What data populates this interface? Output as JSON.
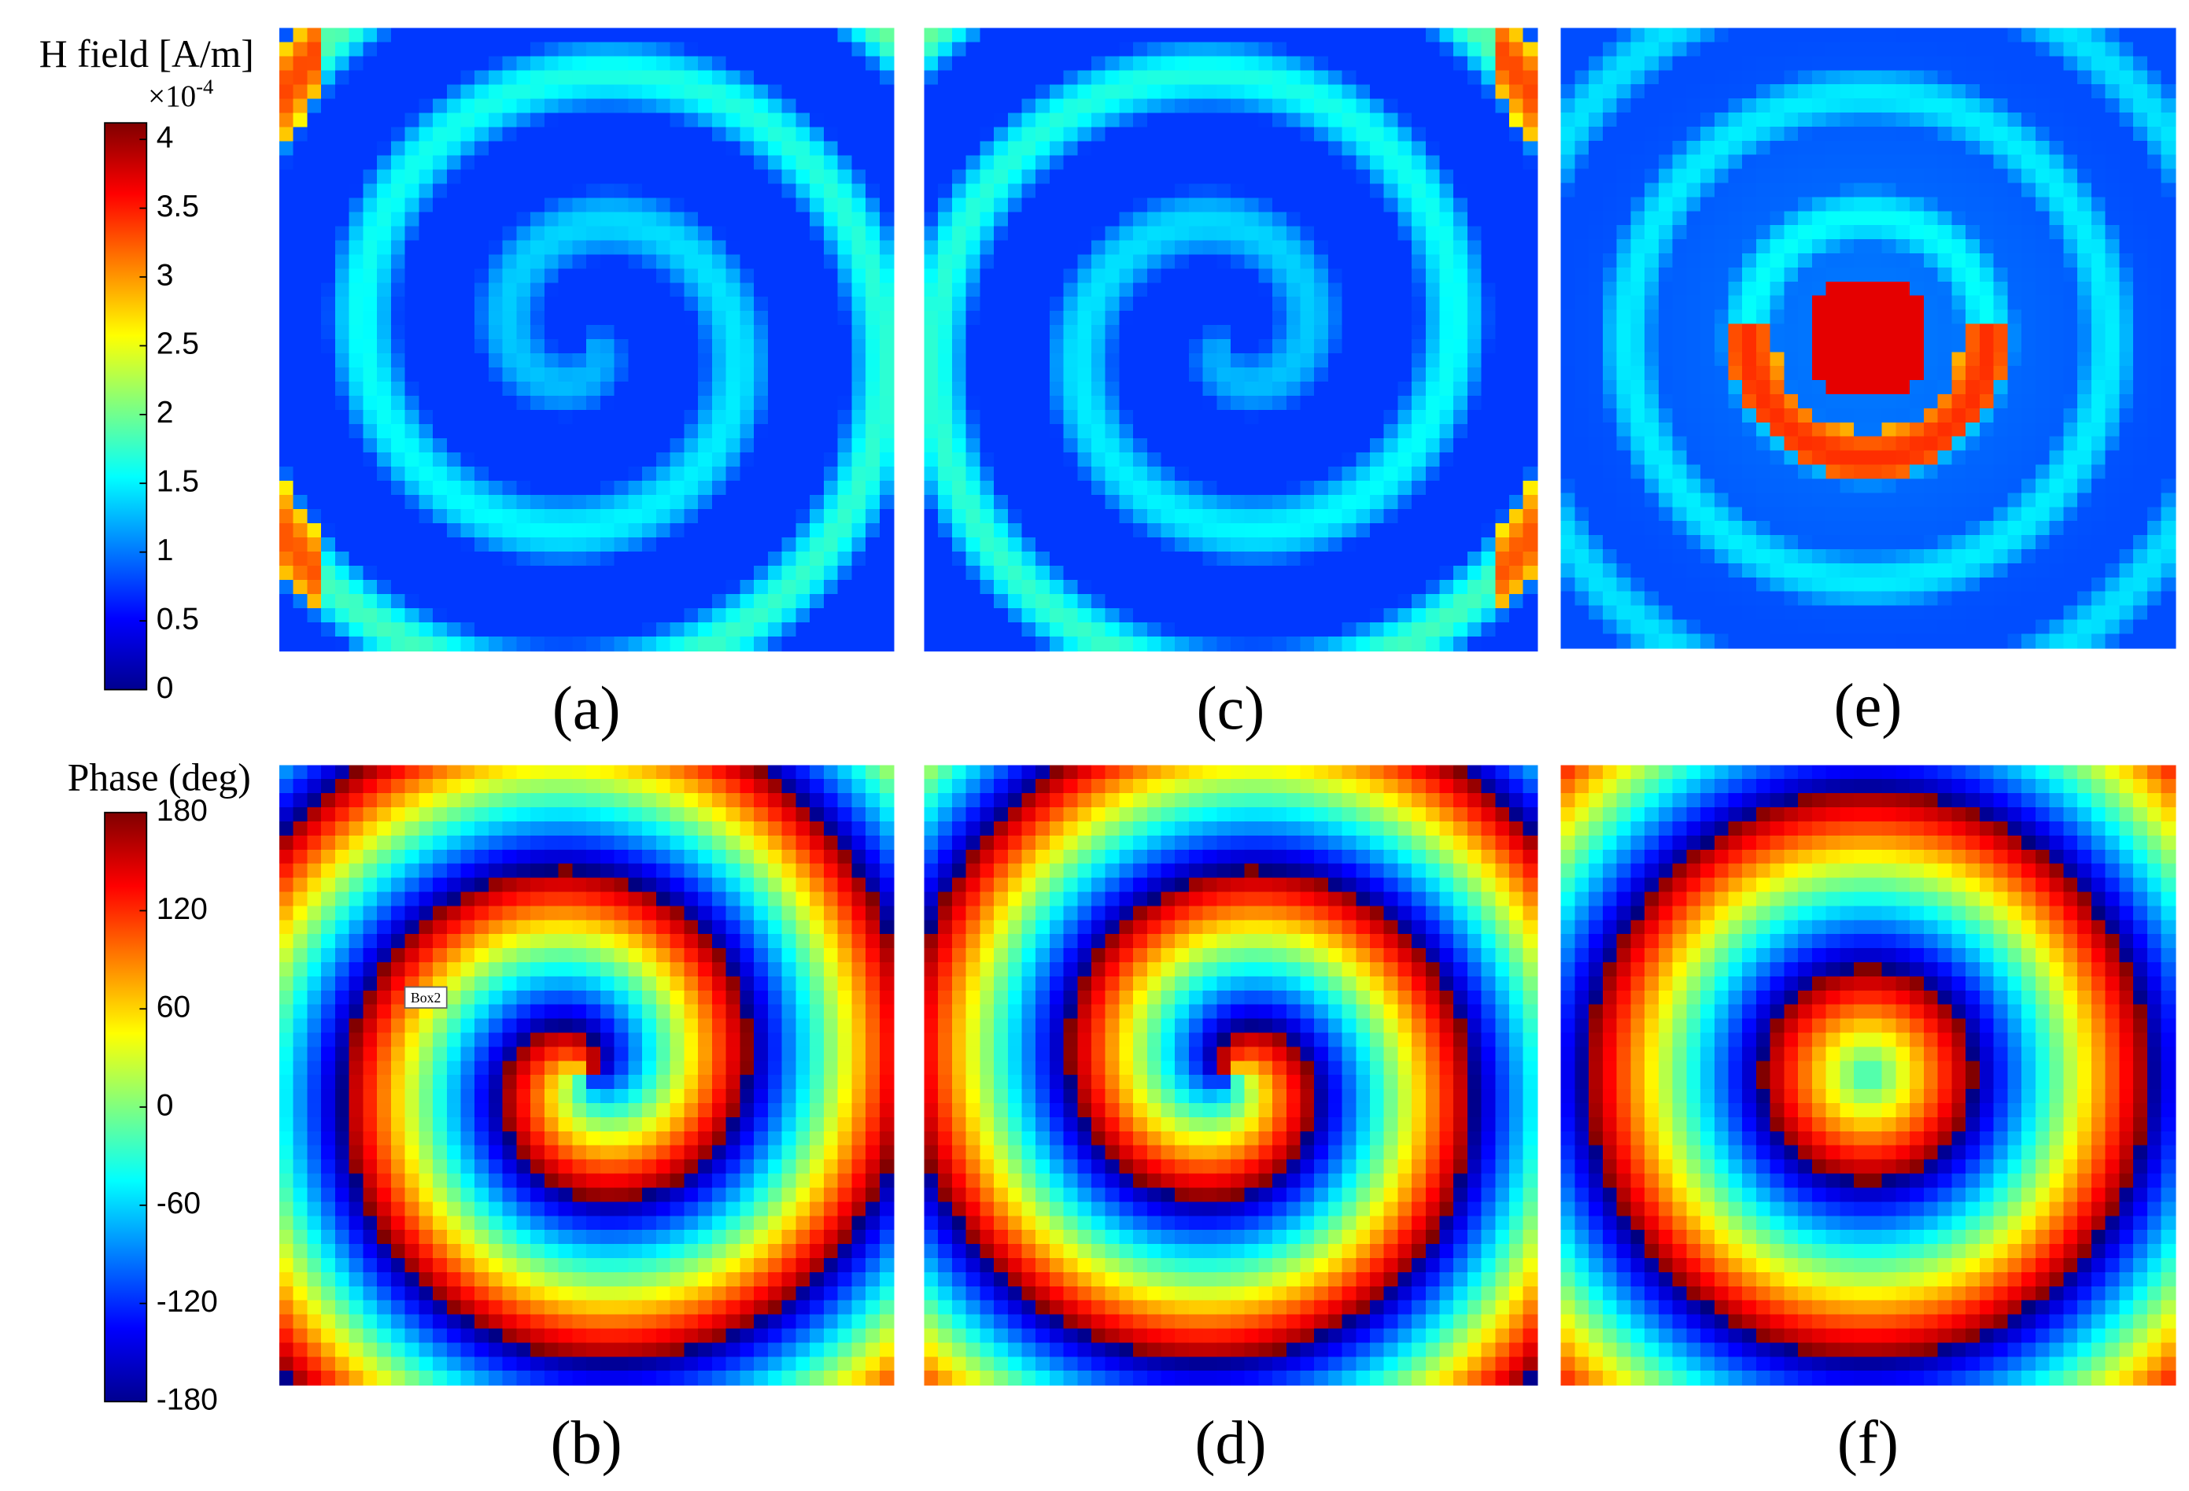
{
  "colorbars": [
    {
      "title": "H field [A/m]",
      "multiplier": "×10",
      "exponent": "-4",
      "lim": [
        0,
        4.12
      ],
      "ticks": [
        0,
        0.5,
        1,
        1.5,
        2,
        2.5,
        3,
        3.5,
        4
      ]
    },
    {
      "title": "Phase (deg)",
      "lim": [
        -180,
        180
      ],
      "ticks": [
        -180,
        -120,
        -60,
        0,
        60,
        120,
        180
      ]
    }
  ],
  "panels": [
    {
      "label": "(a)"
    },
    {
      "label": "(c)"
    },
    {
      "label": "(e)"
    },
    {
      "label": "(b)"
    },
    {
      "label": "(d)"
    },
    {
      "label": "(f)"
    }
  ],
  "annotation": "Box2"
}
